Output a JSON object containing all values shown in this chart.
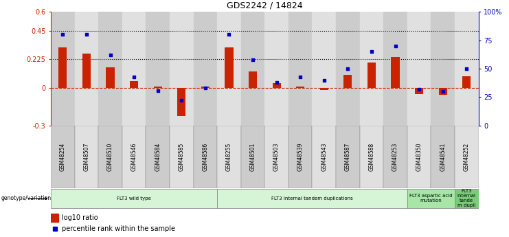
{
  "title": "GDS2242 / 14824",
  "samples": [
    "GSM48254",
    "GSM48507",
    "GSM48510",
    "GSM48546",
    "GSM48584",
    "GSM48585",
    "GSM48586",
    "GSM48255",
    "GSM48501",
    "GSM48503",
    "GSM48539",
    "GSM48543",
    "GSM48587",
    "GSM48588",
    "GSM48253",
    "GSM48350",
    "GSM48541",
    "GSM48252"
  ],
  "log10_ratio": [
    0.32,
    0.27,
    0.16,
    0.05,
    0.01,
    -0.225,
    0.01,
    0.32,
    0.13,
    0.035,
    0.01,
    -0.02,
    0.1,
    0.2,
    0.24,
    -0.05,
    -0.055,
    0.09
  ],
  "percentile_rank": [
    80,
    80,
    62,
    43,
    31,
    22,
    33,
    80,
    58,
    38,
    43,
    40,
    50,
    65,
    70,
    32,
    30,
    50
  ],
  "groups": [
    {
      "label": "FLT3 wild type",
      "start": 0,
      "end": 7
    },
    {
      "label": "FLT3 internal tandem duplications",
      "start": 7,
      "end": 15
    },
    {
      "label": "FLT3 aspartic acid\nmutation",
      "start": 15,
      "end": 17
    },
    {
      "label": "FLT3\ninternal\ntande\nm dupli",
      "start": 17,
      "end": 18
    }
  ],
  "group_colors": [
    "#d6f5d6",
    "#d6f5d6",
    "#a8e6a8",
    "#7acc7a"
  ],
  "ylim_left": [
    -0.3,
    0.6
  ],
  "ylim_right": [
    0,
    100
  ],
  "yticks_left": [
    -0.3,
    0.0,
    0.225,
    0.45,
    0.6
  ],
  "ytick_labels_left": [
    "-0.3",
    "0",
    "0.225",
    "0.45",
    "0.6"
  ],
  "yticks_right": [
    0,
    25,
    50,
    75,
    100
  ],
  "ytick_labels_right": [
    "0",
    "25",
    "50",
    "75",
    "100%"
  ],
  "hlines": [
    0.225,
    0.45
  ],
  "bar_color": "#cc2200",
  "dot_color": "#0000cc",
  "zero_line_color": "#cc2200",
  "genotype_label": "genotype/variation",
  "legend_bar_label": "log10 ratio",
  "legend_dot_label": "percentile rank within the sample",
  "col_bg_even": "#cccccc",
  "col_bg_odd": "#e0e0e0"
}
